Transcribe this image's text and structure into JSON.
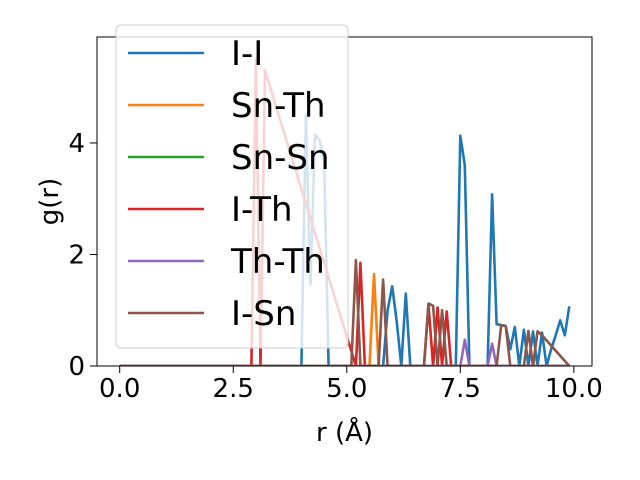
{
  "chart_data": {
    "type": "line",
    "title": "",
    "xlabel": "r (Å)",
    "ylabel": "g(r)",
    "xlim": [
      -0.5,
      10.4
    ],
    "ylim": [
      0,
      5.9
    ],
    "xticks": [
      0.0,
      2.5,
      5.0,
      7.5,
      10.0
    ],
    "xtick_labels": [
      "0.0",
      "2.5",
      "5.0",
      "7.5",
      "10.0"
    ],
    "yticks": [
      0,
      2,
      4
    ],
    "ytick_labels": [
      "0",
      "2",
      "4"
    ],
    "grid": false,
    "legend_position": "upper-left",
    "series": [
      {
        "name": "I-I",
        "color": "#1f77b4",
        "x": [
          0,
          3.9,
          4.0,
          4.1,
          4.2,
          4.3,
          4.4,
          4.5,
          4.6,
          4.7,
          5.8,
          5.9,
          6.0,
          6.1,
          6.2,
          6.3,
          6.4,
          7.4,
          7.5,
          7.6,
          7.7,
          8.1,
          8.2,
          8.3,
          8.5,
          8.6,
          8.7,
          8.8,
          8.9,
          9.0,
          9.1,
          9.2,
          9.3,
          9.4,
          9.5,
          9.6,
          9.7,
          9.8,
          9.9
        ],
        "y": [
          0,
          0,
          0,
          4.5,
          1.45,
          4.15,
          4.05,
          3.7,
          0,
          0,
          0,
          1.0,
          1.43,
          0.8,
          0,
          1.3,
          0,
          0,
          4.13,
          3.6,
          0,
          0,
          3.08,
          0.75,
          0.72,
          0.3,
          0.7,
          0,
          0.65,
          0,
          0.62,
          0,
          0.6,
          0,
          0.3,
          0.55,
          0.82,
          0.55,
          1.07
        ]
      },
      {
        "name": "Sn-Th",
        "color": "#ff7f0e",
        "x": [
          0,
          5.4,
          5.5,
          5.6,
          5.7,
          9.9
        ],
        "y": [
          0,
          0,
          0,
          1.65,
          0,
          0
        ]
      },
      {
        "name": "Sn-Sn",
        "color": "#2ca02c",
        "x": [
          0,
          9.9
        ],
        "y": [
          0,
          0
        ]
      },
      {
        "name": "I-Th",
        "color": "#d62728",
        "x": [
          0,
          2.9,
          3.0,
          3.1,
          3.2,
          5.2,
          5.3,
          5.4,
          6.7,
          6.8,
          6.9,
          7.0,
          7.1,
          7.2,
          7.3,
          9.9
        ],
        "y": [
          0,
          0,
          5.5,
          0,
          5.3,
          0,
          1.85,
          0,
          0,
          1.1,
          0,
          1.05,
          0,
          0.98,
          0,
          0
        ]
      },
      {
        "name": "Th-Th",
        "color": "#9467bd",
        "x": [
          0,
          7.5,
          7.6,
          7.7,
          8.1,
          8.2,
          8.3,
          9.9
        ],
        "y": [
          0,
          0,
          0.47,
          0,
          0,
          0.4,
          0,
          0
        ]
      },
      {
        "name": "I-Sn",
        "color": "#8c564b",
        "x": [
          0,
          5.1,
          5.2,
          5.3,
          5.7,
          5.8,
          5.9,
          6.7,
          6.8,
          6.9,
          7.0,
          7.1,
          7.2,
          8.3,
          8.4,
          8.5,
          8.6,
          8.9,
          9.0,
          9.1,
          9.2,
          9.3,
          9.9
        ],
        "y": [
          0,
          0,
          1.9,
          0,
          0,
          1.55,
          0,
          0,
          1.12,
          1.08,
          0,
          1.0,
          0,
          0,
          0.73,
          0.72,
          0,
          0,
          0.63,
          0,
          0.62,
          0.55,
          0
        ]
      }
    ]
  }
}
